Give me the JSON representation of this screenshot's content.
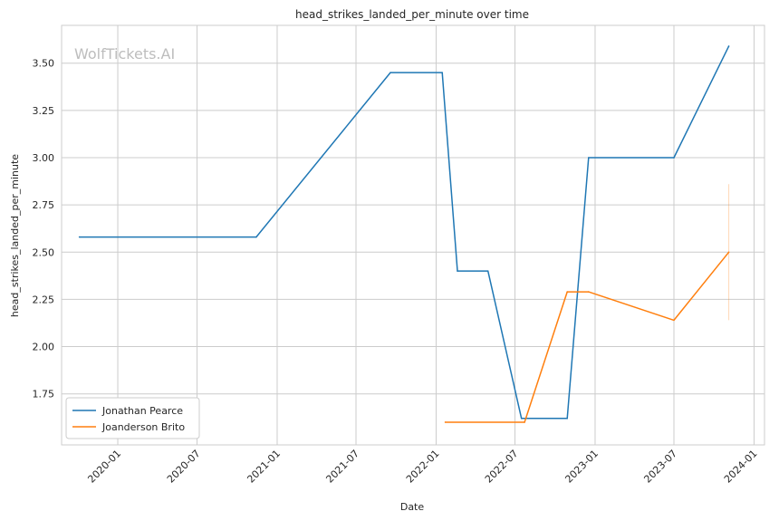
{
  "chart_data": {
    "type": "line",
    "title": "head_strikes_landed_per_minute over time",
    "xlabel": "Date",
    "ylabel": "head_strikes_landed_per_minute",
    "watermark": "WolfTickets.AI",
    "x_ticks": [
      "2020-01",
      "2020-07",
      "2021-01",
      "2021-07",
      "2022-01",
      "2022-07",
      "2023-01",
      "2023-07",
      "2024-01"
    ],
    "y_ticks": [
      "1.75",
      "2.00",
      "2.25",
      "2.50",
      "2.75",
      "3.00",
      "3.25",
      "3.50"
    ],
    "xlim": [
      "2019-08-25",
      "2024-01-25"
    ],
    "ylim": [
      1.48,
      3.7
    ],
    "grid": true,
    "legend_position": "lower-left",
    "series": [
      {
        "name": "Jonathan Pearce",
        "color": "#1f77b4",
        "points": [
          [
            "2019-10-05",
            2.58
          ],
          [
            "2020-11-14",
            2.58
          ],
          [
            "2021-09-18",
            3.45
          ],
          [
            "2022-01-15",
            3.45
          ],
          [
            "2022-02-19",
            2.4
          ],
          [
            "2022-04-30",
            2.4
          ],
          [
            "2022-07-16",
            1.62
          ],
          [
            "2022-10-29",
            1.62
          ],
          [
            "2022-12-17",
            3.0
          ],
          [
            "2023-07-01",
            3.0
          ],
          [
            "2023-11-04",
            3.59
          ]
        ]
      },
      {
        "name": "Joanderson Brito",
        "color": "#ff7f0e",
        "points": [
          [
            "2022-01-22",
            1.6
          ],
          [
            "2022-07-23",
            1.6
          ],
          [
            "2022-10-29",
            2.29
          ],
          [
            "2022-12-17",
            2.29
          ],
          [
            "2023-07-01",
            2.14
          ],
          [
            "2023-11-04",
            2.5
          ]
        ],
        "error_bar": {
          "x": "2023-11-04",
          "low": 2.14,
          "high": 2.86
        }
      }
    ]
  }
}
